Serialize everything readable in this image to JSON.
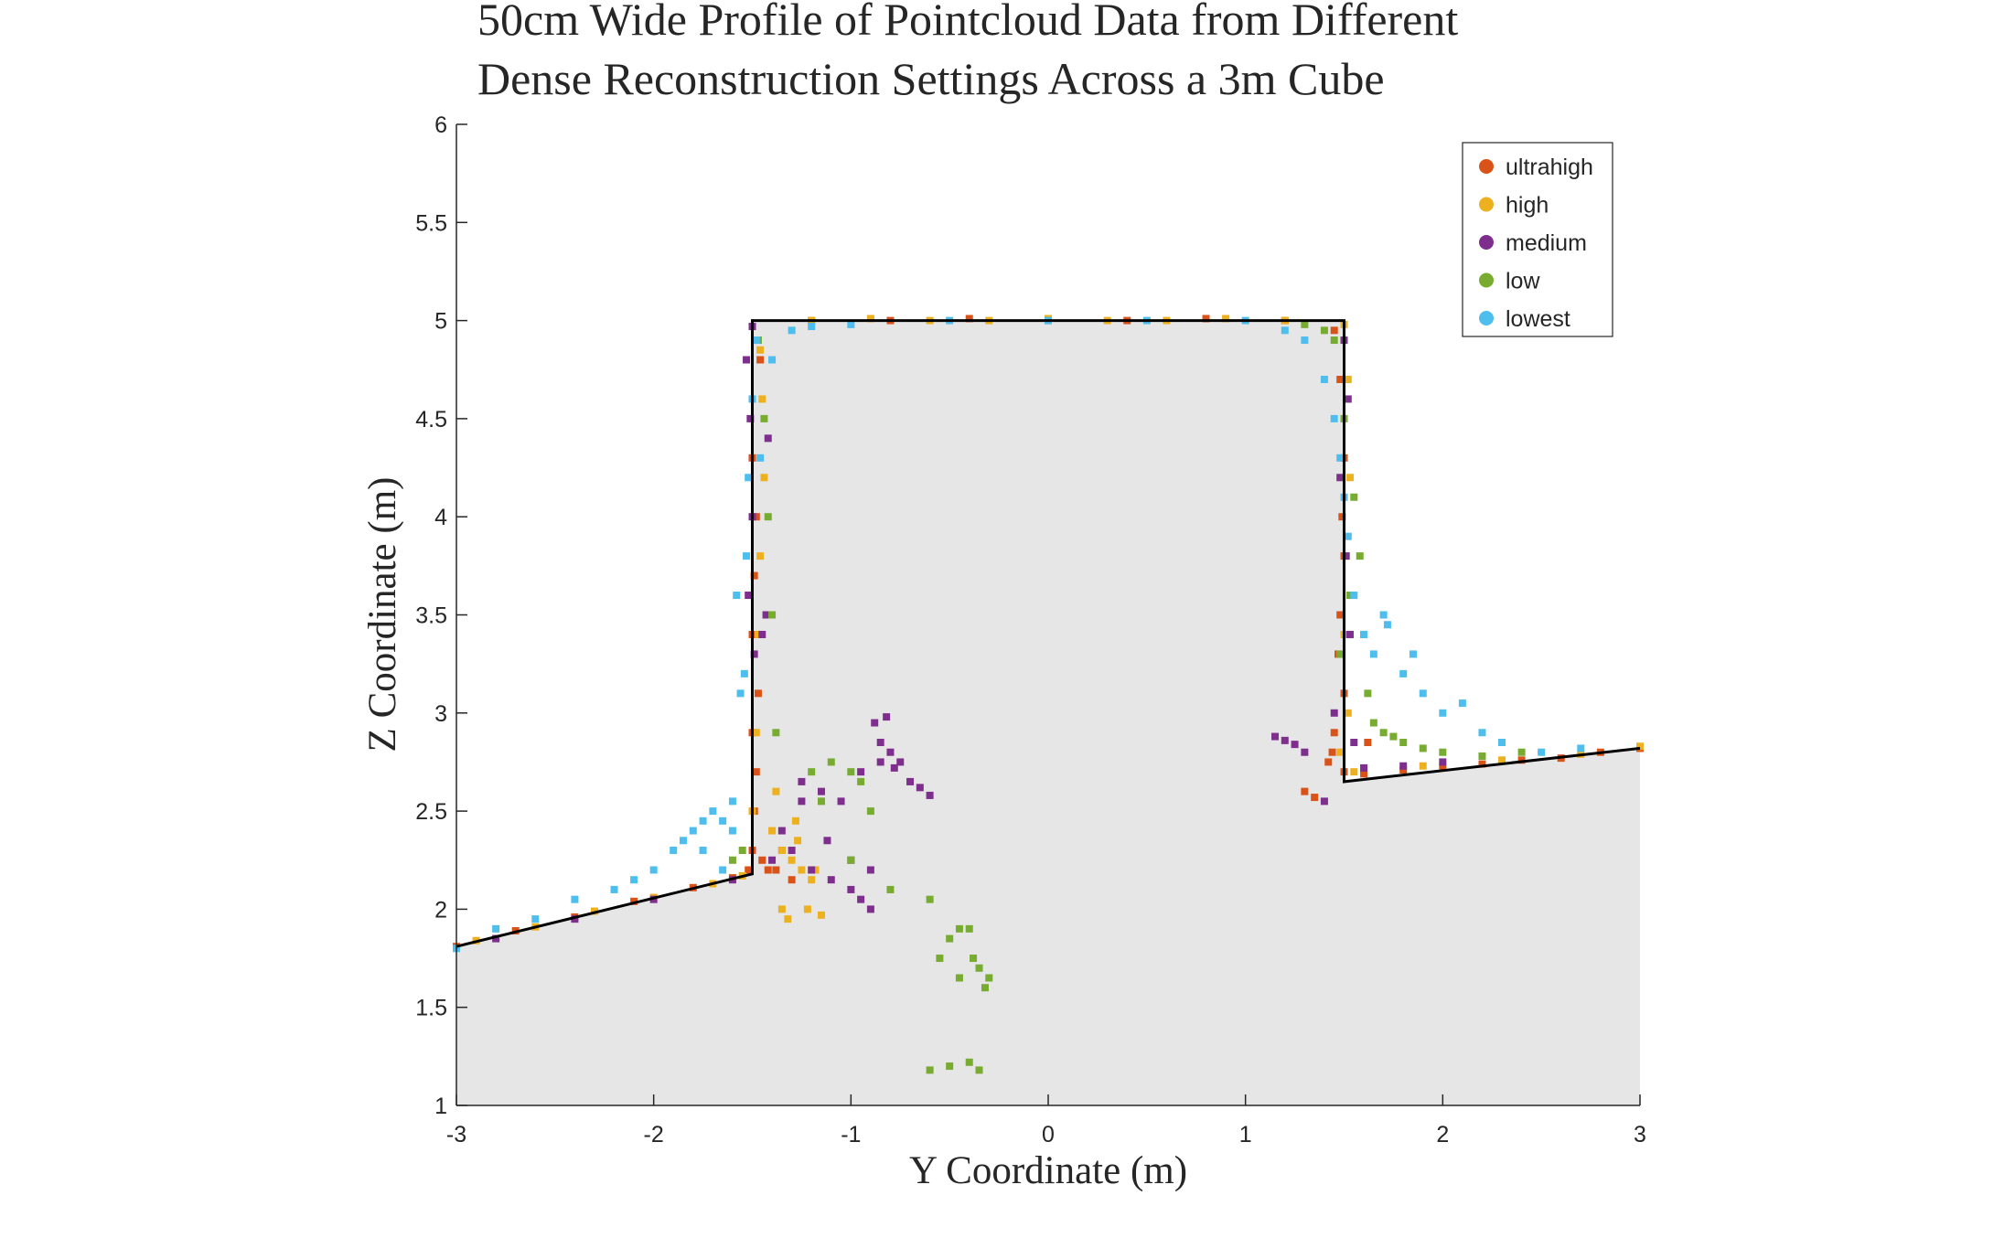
{
  "chart_data": {
    "type": "scatter",
    "title": "50cm Wide Profile of Pointcloud Data from Different\nDense Reconstruction Settings Across a 3m Cube",
    "xlabel": "Y Coordinate (m)",
    "ylabel": "Z Coordinate (m)",
    "xlim": [
      -3,
      3
    ],
    "ylim": [
      1,
      6
    ],
    "xticks": [
      -3,
      -2,
      -1,
      0,
      1,
      2,
      3
    ],
    "yticks": [
      1,
      1.5,
      2,
      2.5,
      3,
      3.5,
      4,
      4.5,
      5,
      5.5,
      6
    ],
    "xtick_labels": [
      "-3",
      "-2",
      "-1",
      "0",
      "1",
      "2",
      "3"
    ],
    "ytick_labels": [
      "1",
      "1.5",
      "2",
      "2.5",
      "3",
      "3.5",
      "4",
      "4.5",
      "5",
      "5.5",
      "6"
    ],
    "grid": false,
    "legend_position": "top-right",
    "background_region_color": "#e6e6e6",
    "ground_truth_profile": {
      "color": "#000000",
      "x": [
        -3,
        -1.5,
        -1.5,
        1.5,
        1.5,
        3
      ],
      "y": [
        1.81,
        2.18,
        5.0,
        5.0,
        2.65,
        2.82
      ]
    },
    "series": [
      {
        "name": "ultrahigh",
        "color": "#d95319",
        "x": [
          -3.0,
          -2.7,
          -2.4,
          -2.1,
          -1.8,
          -1.6,
          -1.52,
          -1.5,
          -1.49,
          -1.48,
          -1.5,
          -1.47,
          -1.5,
          -1.49,
          -1.48,
          -1.5,
          -1.45,
          -1.42,
          -1.38,
          -1.35,
          -1.3,
          -1.46,
          -1.2,
          -0.8,
          -0.4,
          0.0,
          0.4,
          0.8,
          1.2,
          1.45,
          1.48,
          1.5,
          1.49,
          1.5,
          1.48,
          1.47,
          1.5,
          1.45,
          1.44,
          1.42,
          1.5,
          1.6,
          1.8,
          2.0,
          2.2,
          2.4,
          2.6,
          2.8,
          3.0,
          1.3,
          1.35,
          1.62
        ],
        "y": [
          1.81,
          1.89,
          1.96,
          2.04,
          2.11,
          2.16,
          2.2,
          2.3,
          2.5,
          2.7,
          2.9,
          3.1,
          3.4,
          3.7,
          4.0,
          4.3,
          2.25,
          2.2,
          2.2,
          2.3,
          2.15,
          4.8,
          5.0,
          5.0,
          5.01,
          5.0,
          5.0,
          5.01,
          5.0,
          4.95,
          4.7,
          4.3,
          4.0,
          3.8,
          3.5,
          3.3,
          3.1,
          2.9,
          2.8,
          2.75,
          2.7,
          2.69,
          2.71,
          2.73,
          2.74,
          2.76,
          2.77,
          2.8,
          2.82,
          2.6,
          2.57,
          2.85
        ]
      },
      {
        "name": "high",
        "color": "#edb120",
        "x": [
          -2.9,
          -2.6,
          -2.3,
          -2.0,
          -1.7,
          -1.55,
          -1.5,
          -1.48,
          -1.47,
          -1.46,
          -1.45,
          -1.4,
          -1.35,
          -1.3,
          -1.28,
          -1.25,
          -1.2,
          -1.15,
          -1.32,
          -1.22,
          -1.38,
          -1.27,
          -1.44,
          -1.46,
          -1.2,
          -0.9,
          -0.6,
          -0.3,
          0.0,
          0.3,
          0.6,
          0.9,
          1.2,
          1.5,
          1.52,
          1.53,
          1.51,
          1.5,
          1.52,
          1.48,
          1.55,
          1.9,
          2.3,
          2.7,
          3.0,
          -1.18,
          -1.35
        ],
        "y": [
          1.84,
          1.91,
          1.99,
          2.06,
          2.13,
          2.17,
          2.5,
          2.9,
          3.4,
          3.8,
          4.6,
          2.4,
          2.3,
          2.25,
          2.45,
          2.2,
          2.15,
          1.97,
          1.95,
          2.0,
          2.6,
          2.35,
          4.2,
          4.85,
          5.0,
          5.01,
          5.0,
          5.0,
          5.01,
          5.0,
          5.0,
          5.01,
          5.0,
          4.98,
          4.7,
          4.2,
          3.8,
          3.4,
          3.0,
          2.8,
          2.7,
          2.73,
          2.76,
          2.79,
          2.83,
          2.2,
          2.0
        ]
      },
      {
        "name": "medium",
        "color": "#7e2f8e",
        "x": [
          -2.8,
          -2.4,
          -2.0,
          -1.6,
          -1.53,
          -1.51,
          -1.5,
          -1.52,
          -1.49,
          -1.45,
          -1.43,
          -1.4,
          -1.3,
          -1.2,
          -1.1,
          -1.0,
          -0.95,
          -0.9,
          -0.85,
          -0.8,
          -0.75,
          -0.7,
          -0.65,
          -0.6,
          -0.85,
          -0.88,
          -0.82,
          -0.78,
          -1.15,
          -1.05,
          -1.25,
          -1.35,
          -1.12,
          -1.0,
          -0.9,
          1.15,
          1.2,
          1.25,
          1.3,
          1.5,
          1.52,
          1.48,
          1.51,
          1.53,
          1.45,
          1.6,
          1.8,
          2.0,
          1.55,
          1.4,
          -1.5,
          -1.25,
          -0.95,
          -1.42
        ],
        "y": [
          1.85,
          1.95,
          2.05,
          2.15,
          4.8,
          4.5,
          4.0,
          3.6,
          3.3,
          3.4,
          3.5,
          2.25,
          2.3,
          2.2,
          2.15,
          2.1,
          2.05,
          2.2,
          2.75,
          2.8,
          2.75,
          2.65,
          2.62,
          2.58,
          2.85,
          2.95,
          2.98,
          2.72,
          2.6,
          2.55,
          2.65,
          2.4,
          2.35,
          2.25,
          2.0,
          2.88,
          2.86,
          2.84,
          2.8,
          4.9,
          4.6,
          4.2,
          3.8,
          3.4,
          3.0,
          2.72,
          2.73,
          2.75,
          2.85,
          2.55,
          4.97,
          2.55,
          2.7,
          4.4
        ]
      },
      {
        "name": "low",
        "color": "#77ac30",
        "x": [
          -1.6,
          -1.55,
          -1.47,
          -1.44,
          -1.42,
          -1.4,
          -1.38,
          -1.1,
          -1.0,
          -0.95,
          -1.2,
          -1.15,
          -0.9,
          -0.55,
          -0.5,
          -0.45,
          -0.4,
          -0.35,
          -0.3,
          -0.45,
          -0.38,
          -0.32,
          -0.6,
          -0.5,
          -0.4,
          -0.35,
          1.3,
          1.4,
          1.45,
          1.5,
          1.55,
          1.58,
          1.6,
          1.62,
          1.65,
          1.7,
          1.75,
          1.8,
          1.9,
          2.0,
          2.2,
          2.4,
          -1.0,
          -0.8,
          -0.6,
          1.48,
          1.53
        ],
        "y": [
          2.25,
          2.3,
          4.9,
          4.5,
          4.0,
          3.5,
          2.9,
          2.75,
          2.7,
          2.65,
          2.7,
          2.55,
          2.5,
          1.75,
          1.85,
          1.9,
          1.9,
          1.7,
          1.65,
          1.65,
          1.75,
          1.6,
          1.18,
          1.2,
          1.22,
          1.18,
          4.98,
          4.95,
          4.9,
          4.5,
          4.1,
          3.8,
          3.4,
          3.1,
          2.95,
          2.9,
          2.88,
          2.85,
          2.82,
          2.8,
          2.78,
          2.8,
          2.25,
          2.1,
          2.05,
          3.3,
          3.6
        ]
      },
      {
        "name": "lowest",
        "color": "#4dbeee",
        "x": [
          -3.0,
          -2.8,
          -2.6,
          -2.4,
          -2.2,
          -2.1,
          -2.0,
          -1.9,
          -1.85,
          -1.8,
          -1.75,
          -1.7,
          -1.65,
          -1.6,
          -1.56,
          -1.58,
          -1.54,
          -1.53,
          -1.52,
          -1.5,
          -1.48,
          -1.46,
          -1.4,
          -1.3,
          -1.2,
          -1.0,
          -0.5,
          0.0,
          0.5,
          1.0,
          1.2,
          1.3,
          1.4,
          1.45,
          1.48,
          1.5,
          1.52,
          1.55,
          1.6,
          1.65,
          1.7,
          1.8,
          1.9,
          2.0,
          2.1,
          2.2,
          2.3,
          2.5,
          2.7,
          -1.75,
          -1.65,
          -1.6,
          1.72,
          1.85
        ],
        "y": [
          1.8,
          1.9,
          1.95,
          2.05,
          2.1,
          2.15,
          2.2,
          2.3,
          2.35,
          2.4,
          2.45,
          2.5,
          2.45,
          2.4,
          3.1,
          3.6,
          3.2,
          3.8,
          4.2,
          4.6,
          4.9,
          4.3,
          4.8,
          4.95,
          4.97,
          4.98,
          5.0,
          5.0,
          5.0,
          5.0,
          4.95,
          4.9,
          4.7,
          4.5,
          4.3,
          4.1,
          3.9,
          3.6,
          3.4,
          3.3,
          3.5,
          3.2,
          3.1,
          3.0,
          3.05,
          2.9,
          2.85,
          2.8,
          2.82,
          2.3,
          2.2,
          2.55,
          3.45,
          3.3
        ]
      }
    ]
  }
}
